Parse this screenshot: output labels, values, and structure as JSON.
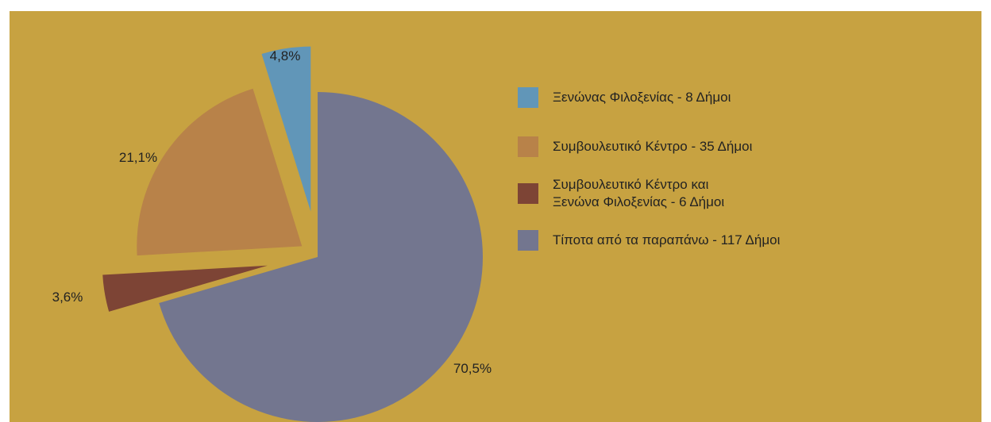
{
  "chart_data": {
    "type": "pie",
    "exploded": true,
    "slices": [
      {
        "label": "Ξενώνας Φιλοξενίας - 8 Δήμοι",
        "value": 4.8,
        "value_label": "4,8%",
        "color": "#6196b8"
      },
      {
        "label": "Συμβουλευτικό Κέντρο - 35 Δήμοι",
        "value": 21.1,
        "value_label": "21,1%",
        "color": "#b88249"
      },
      {
        "label": "Συμβουλευτικό Κέντρο και\nΞενώνα Φιλοξενίας  - 6 Δήμοι",
        "value": 3.6,
        "value_label": "3,6%",
        "color": "#7d4435"
      },
      {
        "label": "Τίποτα από τα παραπάνω - 117 Δήμοι",
        "value": 70.5,
        "value_label": "70,5%",
        "color": "#73768f"
      }
    ],
    "background_color": "#c7a241",
    "legend_position": "right"
  }
}
